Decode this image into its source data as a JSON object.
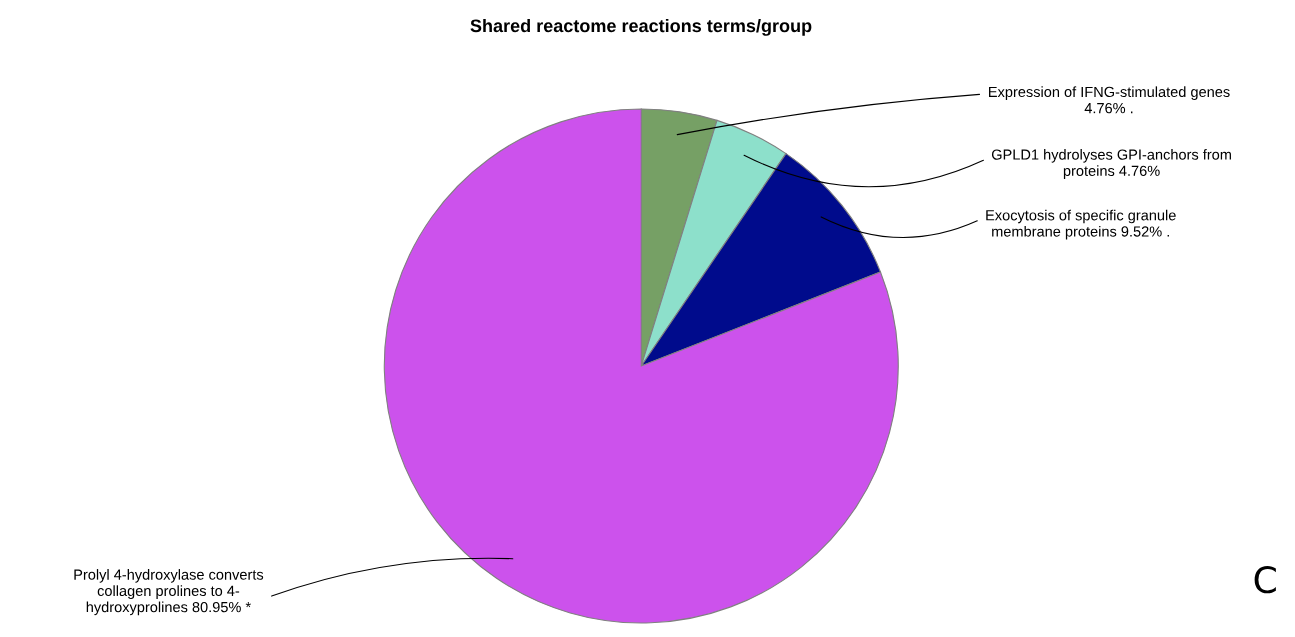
{
  "chart_data": {
    "type": "pie",
    "title": "Shared reactome reactions terms/group",
    "categories": [
      "Expression of IFNG-stimulated genes\n4.76% .",
      "GPLD1 hydrolyses GPI-anchors from\nproteins 4.76%",
      "Exocytosis of specific granule\nmembrane proteins 9.52% .",
      "Prolyl 4-hydroxylase converts\ncollagen prolines to 4-\nhydroxyprolines 80.95% *"
    ],
    "values": [
      4.76,
      4.76,
      9.52,
      80.95
    ],
    "colors": [
      "#76a065",
      "#8de0cb",
      "#000b8c",
      "#cc52ec"
    ],
    "annotations": [
      "C"
    ]
  }
}
